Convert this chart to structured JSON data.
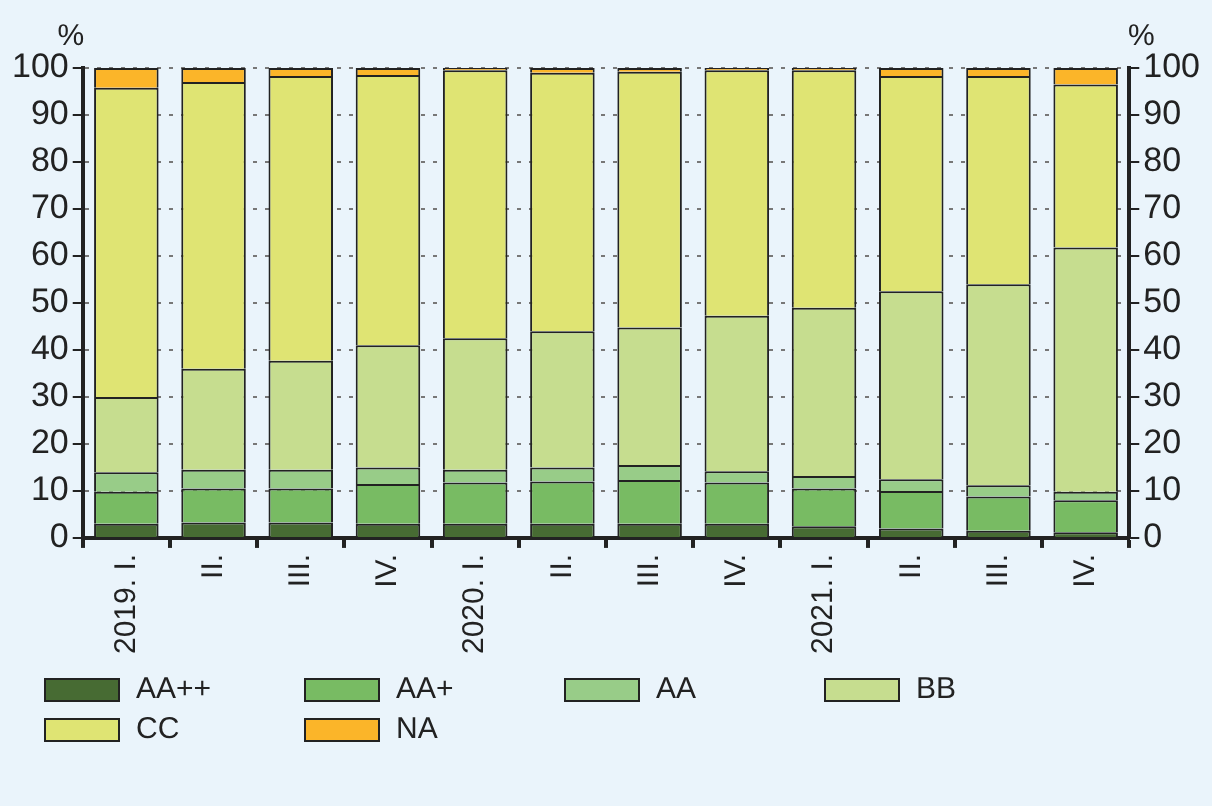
{
  "chart_data": {
    "type": "bar",
    "stacked": true,
    "ylabel": "%",
    "y2label": "%",
    "categories": [
      "2019. I.",
      "II.",
      "III.",
      "IV.",
      "2020. I.",
      "II.",
      "III.",
      "IV.",
      "2021. I.",
      "II.",
      "III.",
      "IV."
    ],
    "series": [
      {
        "name": "AA++",
        "color": "#476b33",
        "values": [
          3,
          3.3,
          3.3,
          3,
          3,
          3,
          3,
          3,
          2.5,
          2,
          1.5,
          1.2
        ]
      },
      {
        "name": "AA+",
        "color": "#78bb63",
        "values": [
          6.8,
          7.2,
          7.2,
          8.5,
          8.8,
          9,
          9.3,
          8.8,
          8,
          8,
          7.3,
          6.8
        ]
      },
      {
        "name": "AA",
        "color": "#98cc88",
        "values": [
          4.2,
          4,
          4,
          3.5,
          2.7,
          3,
          3.2,
          2.4,
          2.7,
          2.5,
          2.4,
          1.8
        ]
      },
      {
        "name": "BB",
        "color": "#c6dd8f",
        "values": [
          16,
          21.5,
          23.2,
          26,
          28,
          29,
          29.3,
          33.1,
          35.8,
          40,
          42.8,
          52
        ]
      },
      {
        "name": "CC",
        "color": "#dfe473",
        "values": [
          65.8,
          61,
          60.6,
          57.5,
          57,
          55,
          54.4,
          52.2,
          50.5,
          45.8,
          44.3,
          34.7
        ]
      },
      {
        "name": "NA",
        "color": "#fbb529",
        "values": [
          4.2,
          3,
          1.7,
          1.5,
          0.5,
          1,
          0.8,
          0.5,
          0.5,
          1.7,
          1.7,
          3.5
        ]
      }
    ],
    "ylim": [
      0,
      100
    ],
    "yticks": [
      0,
      10,
      20,
      30,
      40,
      50,
      60,
      70,
      80,
      90,
      100
    ],
    "y2lim": [
      0,
      100
    ],
    "y2ticks": [
      0,
      10,
      20,
      30,
      40,
      50,
      60,
      70,
      80,
      90,
      100
    ],
    "grid": "y",
    "legend": "bottom"
  }
}
